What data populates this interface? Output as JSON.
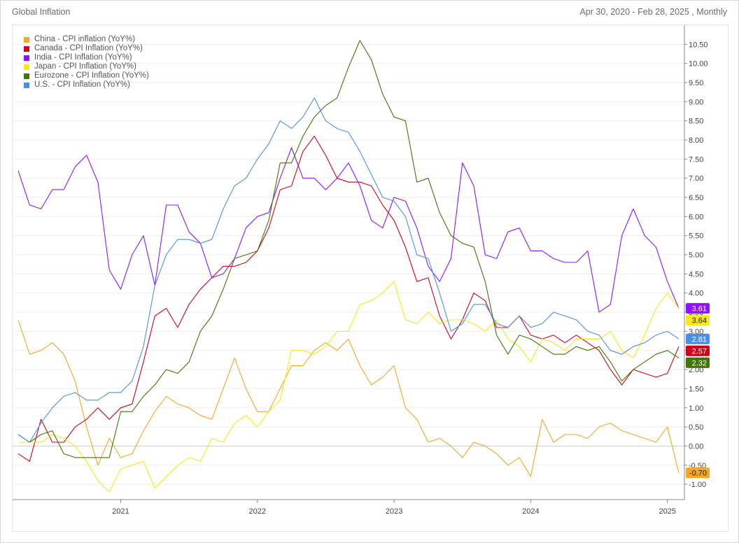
{
  "header": {
    "title": "Global Inflation",
    "range": "Apr 30, 2020 - Feb 28, 2025 , Monthly"
  },
  "chart_data": {
    "type": "line",
    "x": [
      "2020-04",
      "2020-05",
      "2020-06",
      "2020-07",
      "2020-08",
      "2020-09",
      "2020-10",
      "2020-11",
      "2020-12",
      "2021-01",
      "2021-02",
      "2021-03",
      "2021-04",
      "2021-05",
      "2021-06",
      "2021-07",
      "2021-08",
      "2021-09",
      "2021-10",
      "2021-11",
      "2021-12",
      "2022-01",
      "2022-02",
      "2022-03",
      "2022-04",
      "2022-05",
      "2022-06",
      "2022-07",
      "2022-08",
      "2022-09",
      "2022-10",
      "2022-11",
      "2022-12",
      "2023-01",
      "2023-02",
      "2023-03",
      "2023-04",
      "2023-05",
      "2023-06",
      "2023-07",
      "2023-08",
      "2023-09",
      "2023-10",
      "2023-11",
      "2023-12",
      "2024-01",
      "2024-02",
      "2024-03",
      "2024-04",
      "2024-05",
      "2024-06",
      "2024-07",
      "2024-08",
      "2024-09",
      "2024-10",
      "2024-11",
      "2024-12",
      "2025-01",
      "2025-02"
    ],
    "x_ticks": [
      "2021",
      "2022",
      "2023",
      "2024",
      "2025"
    ],
    "y_ticks": [
      "-1.00",
      "-0.50",
      "0.00",
      "0.50",
      "1.00",
      "1.50",
      "2.00",
      "2.50",
      "3.00",
      "3.50",
      "4.00",
      "4.50",
      "5.00",
      "5.50",
      "6.00",
      "6.50",
      "7.00",
      "7.50",
      "8.00",
      "8.50",
      "9.00",
      "9.50",
      "10.00",
      "10.50"
    ],
    "ylim": [
      -1.4,
      11.0
    ],
    "grid": true,
    "legend_position": "top-left",
    "series": [
      {
        "name": "China - CPI inflation (YoY%)",
        "color": "#f5a623",
        "last_label": "-0.70",
        "values": [
          3.3,
          2.4,
          2.5,
          2.7,
          2.4,
          1.7,
          0.5,
          -0.5,
          0.2,
          -0.3,
          -0.2,
          0.4,
          0.9,
          1.3,
          1.1,
          1.0,
          0.8,
          0.7,
          1.5,
          2.3,
          1.5,
          0.9,
          0.9,
          1.5,
          2.1,
          2.1,
          2.5,
          2.7,
          2.5,
          2.8,
          2.1,
          1.6,
          1.8,
          2.1,
          1.0,
          0.7,
          0.1,
          0.2,
          0.0,
          -0.3,
          0.1,
          0.0,
          -0.2,
          -0.5,
          -0.3,
          -0.8,
          0.7,
          0.1,
          0.3,
          0.3,
          0.2,
          0.5,
          0.6,
          0.4,
          0.3,
          0.2,
          0.1,
          0.5,
          -0.7
        ]
      },
      {
        "name": "Canada - CPI Inflation (YoY%)",
        "color": "#d0021b",
        "last_label": "2.57",
        "values": [
          -0.2,
          -0.4,
          0.7,
          0.1,
          0.1,
          0.5,
          0.7,
          1.0,
          0.7,
          1.0,
          1.1,
          2.2,
          3.4,
          3.6,
          3.1,
          3.7,
          4.1,
          4.4,
          4.7,
          4.7,
          4.8,
          5.1,
          5.7,
          6.7,
          6.8,
          7.7,
          8.1,
          7.6,
          7.0,
          6.9,
          6.9,
          6.8,
          6.3,
          5.9,
          5.2,
          4.3,
          4.4,
          3.4,
          2.8,
          3.3,
          4.0,
          3.8,
          3.1,
          3.1,
          3.4,
          2.9,
          2.8,
          2.9,
          2.7,
          2.9,
          2.7,
          2.5,
          2.0,
          1.6,
          2.0,
          1.9,
          1.8,
          1.9,
          2.6
        ]
      },
      {
        "name": "India - CPI Inflation (YoY%)",
        "color": "#9013fe",
        "last_label": "3.61",
        "values": [
          7.2,
          6.3,
          6.2,
          6.7,
          6.7,
          7.3,
          7.6,
          6.9,
          4.6,
          4.1,
          5.0,
          5.5,
          4.2,
          6.3,
          6.3,
          5.6,
          5.3,
          4.4,
          4.5,
          4.9,
          5.7,
          6.0,
          6.1,
          7.0,
          7.8,
          7.0,
          7.0,
          6.7,
          7.0,
          7.4,
          6.8,
          5.9,
          5.7,
          6.5,
          6.4,
          5.7,
          4.7,
          4.3,
          4.9,
          7.4,
          6.8,
          5.0,
          4.9,
          5.6,
          5.7,
          5.1,
          5.1,
          4.9,
          4.8,
          4.8,
          5.1,
          3.5,
          3.7,
          5.5,
          6.2,
          5.5,
          5.2,
          4.3,
          3.6
        ]
      },
      {
        "name": "Japan - CPI Inflation (YoY%)",
        "color": "#f8e71c",
        "last_label": "3.64",
        "values": [
          0.1,
          0.1,
          0.1,
          0.3,
          0.2,
          0.0,
          -0.4,
          -0.9,
          -1.2,
          -0.6,
          -0.5,
          -0.4,
          -1.1,
          -0.8,
          -0.5,
          -0.3,
          -0.4,
          0.2,
          0.1,
          0.6,
          0.8,
          0.5,
          0.9,
          1.2,
          2.5,
          2.5,
          2.4,
          2.6,
          3.0,
          3.0,
          3.7,
          3.8,
          4.0,
          4.3,
          3.3,
          3.2,
          3.5,
          3.2,
          3.3,
          3.3,
          3.2,
          3.0,
          3.3,
          2.8,
          2.6,
          2.2,
          2.8,
          2.7,
          2.5,
          2.8,
          2.8,
          2.8,
          3.0,
          2.5,
          2.3,
          2.9,
          3.6,
          4.0,
          3.6
        ]
      },
      {
        "name": "Eurozone - CPI Inflation (YoY%)",
        "color": "#417505",
        "last_label": "2.32",
        "values": [
          0.3,
          0.1,
          0.3,
          0.4,
          -0.2,
          -0.3,
          -0.3,
          -0.3,
          -0.3,
          0.9,
          0.9,
          1.3,
          1.6,
          2.0,
          1.9,
          2.2,
          3.0,
          3.4,
          4.1,
          4.9,
          5.0,
          5.1,
          5.9,
          7.4,
          7.4,
          8.1,
          8.6,
          8.9,
          9.1,
          9.9,
          10.6,
          10.1,
          9.2,
          8.6,
          8.5,
          6.9,
          7.0,
          6.1,
          5.5,
          5.3,
          5.2,
          4.3,
          2.9,
          2.4,
          2.9,
          2.8,
          2.6,
          2.4,
          2.4,
          2.6,
          2.5,
          2.6,
          2.2,
          1.7,
          2.0,
          2.2,
          2.4,
          2.5,
          2.3
        ]
      },
      {
        "name": "U.S. - CPI Inflation (YoY%)",
        "color": "#4a90e2",
        "last_label": "2.81",
        "values": [
          0.3,
          0.1,
          0.6,
          1.0,
          1.3,
          1.4,
          1.2,
          1.2,
          1.4,
          1.4,
          1.7,
          2.6,
          4.2,
          5.0,
          5.4,
          5.4,
          5.3,
          5.4,
          6.2,
          6.8,
          7.0,
          7.5,
          7.9,
          8.5,
          8.3,
          8.6,
          9.1,
          8.5,
          8.3,
          8.2,
          7.7,
          7.1,
          6.5,
          6.4,
          6.0,
          5.0,
          4.9,
          4.0,
          3.0,
          3.2,
          3.7,
          3.7,
          3.2,
          3.1,
          3.4,
          3.1,
          3.2,
          3.5,
          3.4,
          3.3,
          3.0,
          2.9,
          2.5,
          2.4,
          2.6,
          2.7,
          2.9,
          3.0,
          2.8
        ]
      }
    ]
  }
}
